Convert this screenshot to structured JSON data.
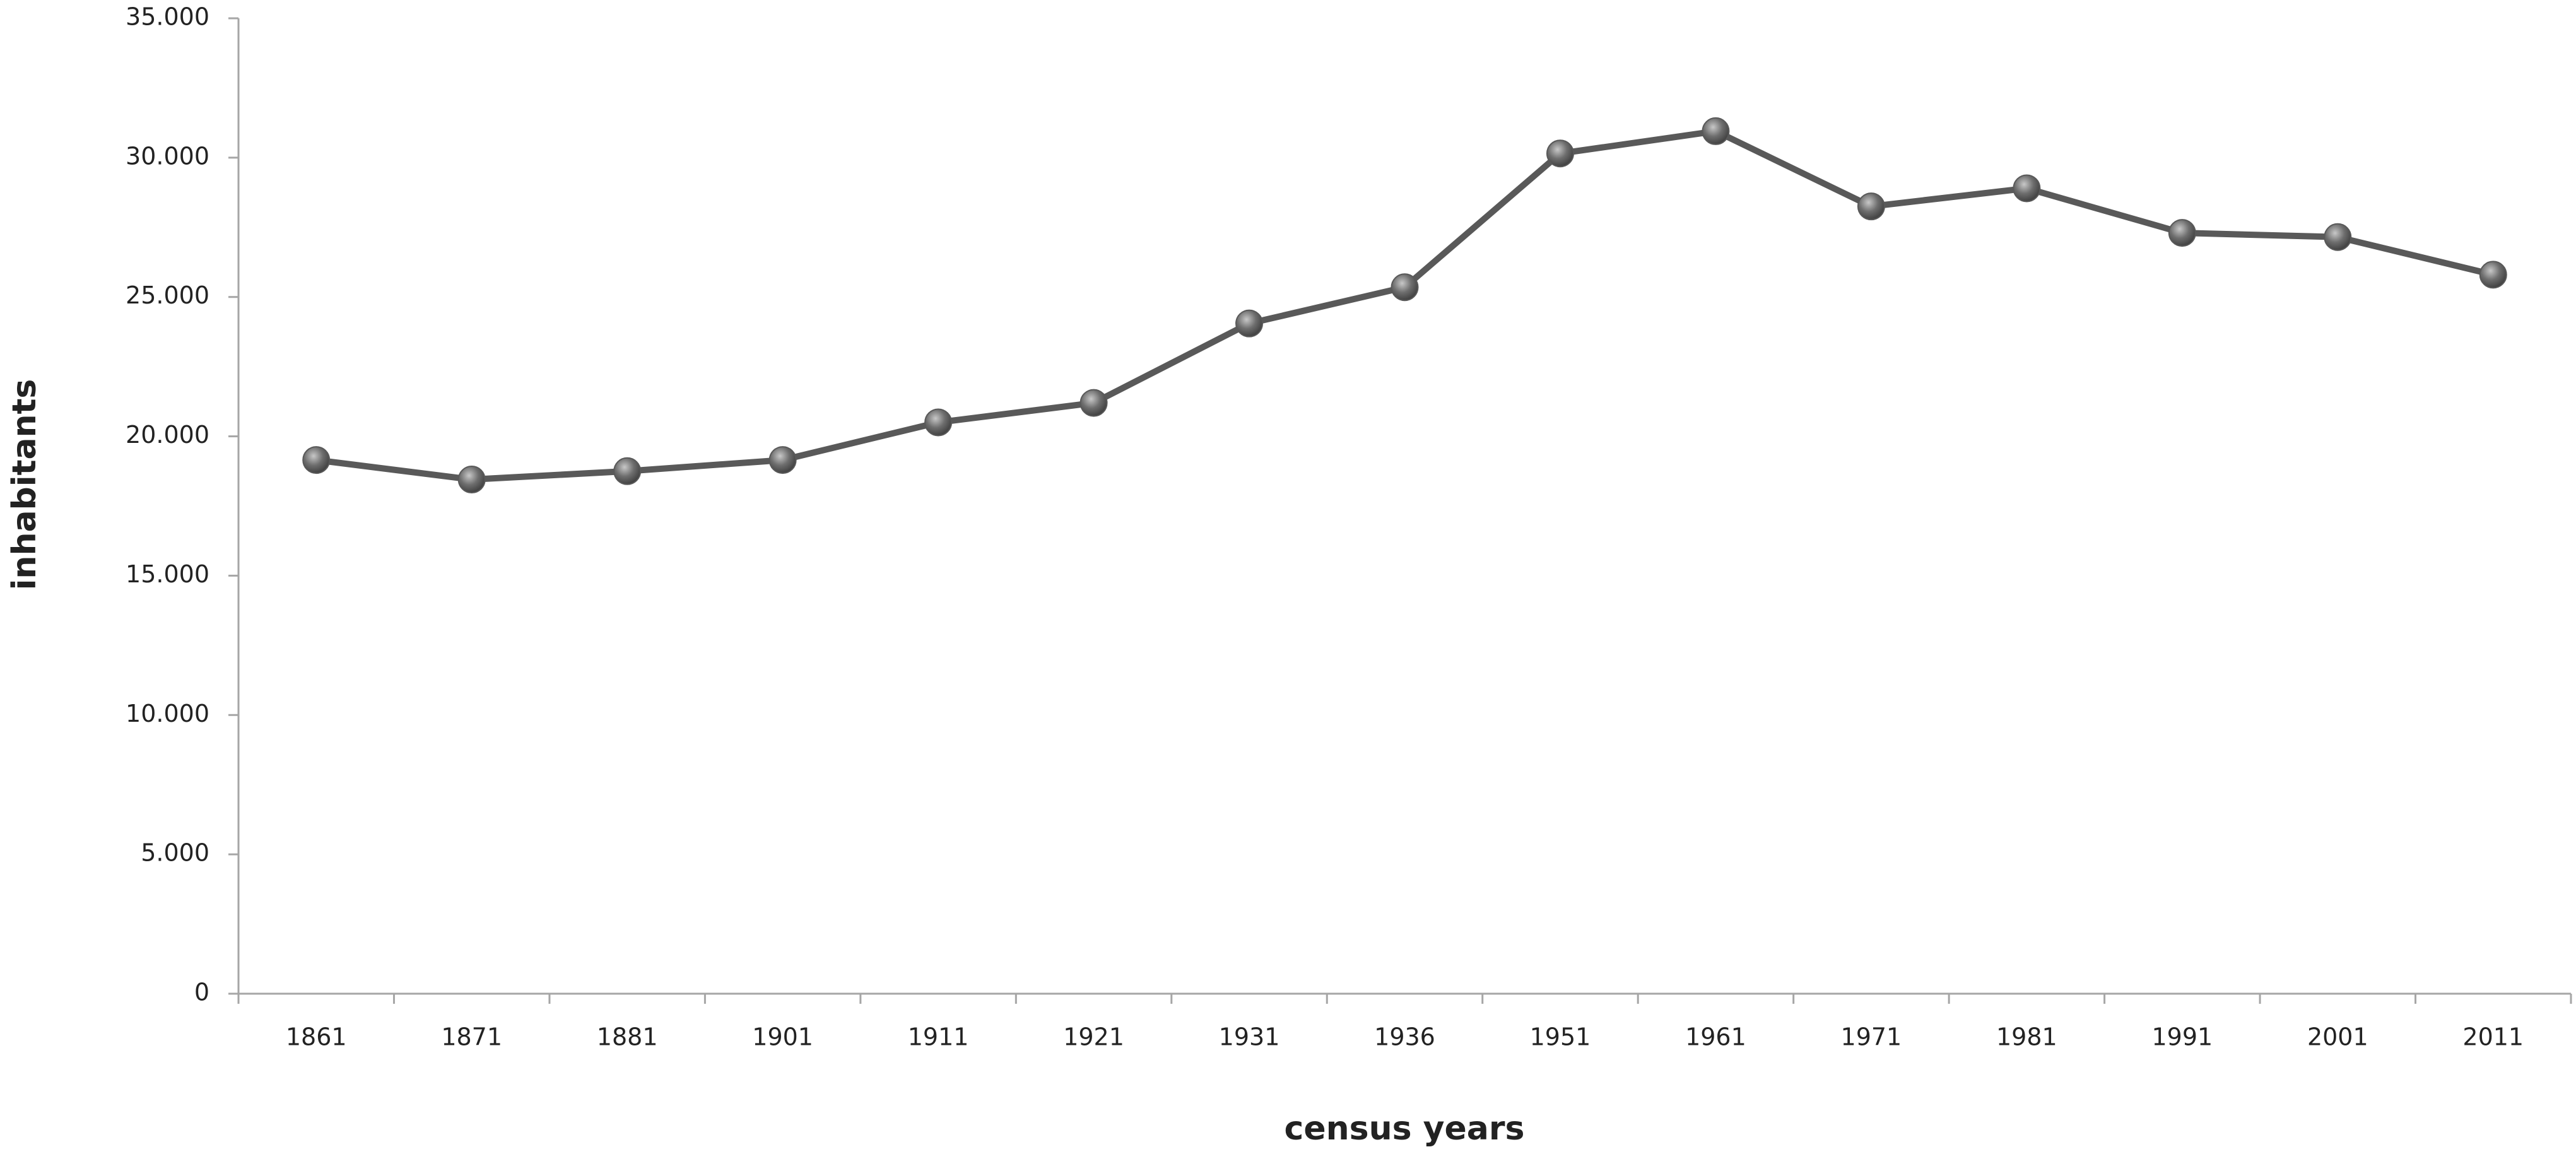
{
  "chart_data": {
    "type": "line",
    "x_label": "census years",
    "y_label": "inhabitants",
    "categories": [
      "1861",
      "1871",
      "1881",
      "1901",
      "1911",
      "1921",
      "1931",
      "1936",
      "1951",
      "1961",
      "1971",
      "1981",
      "1991",
      "2001",
      "2011"
    ],
    "values": [
      19150,
      18450,
      18750,
      19150,
      20500,
      21200,
      24050,
      25350,
      30150,
      30950,
      28250,
      28900,
      27300,
      27150,
      25800
    ],
    "color": "#595959",
    "ylim": [
      0,
      35000
    ],
    "yticks": [
      0,
      {
        "value": 5000,
        "label": "5.000"
      },
      {
        "value": 10000,
        "label": "10.000"
      },
      {
        "value": 15000,
        "label": "15.000"
      },
      {
        "value": 20000,
        "label": "20.000"
      },
      {
        "value": 25000,
        "label": "25.000"
      },
      {
        "value": 30000,
        "label": "30.000"
      },
      {
        "value": 35000,
        "label": "35.000"
      }
    ],
    "grid": false
  }
}
